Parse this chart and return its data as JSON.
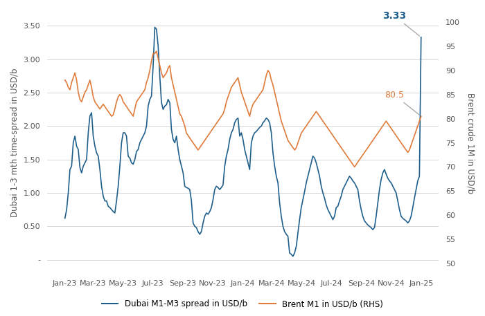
{
  "title": "",
  "ylabel_left": "Dubai 1-3 mth time-spread in USD/b",
  "ylabel_right": "Brent crude 1M in USD/b",
  "ylim_left": [
    -0.2,
    3.7
  ],
  "ylim_right": [
    48,
    102
  ],
  "yticks_left": [
    0.0,
    0.5,
    1.0,
    1.5,
    2.0,
    2.5,
    3.0,
    3.5
  ],
  "yticks_right": [
    50.0,
    55.0,
    60.0,
    65.0,
    70.0,
    75.0,
    80.0,
    85.0,
    90.0,
    95.0,
    100.0
  ],
  "color_dubai": "#1F5F8B",
  "color_brent": "#E07B3A",
  "legend_dubai": "Dubai M1-M3 spread in USD/b",
  "legend_brent": "Brent M1 in USD/b (RHS)",
  "annotation_dubai_val": "3.33",
  "annotation_brent_val": "80.5",
  "background_color": "#ffffff",
  "grid_color": "#d0d0d0",
  "tick_label_color": "#555555",
  "dubai_data": [
    0.62,
    0.75,
    1.0,
    1.35,
    1.4,
    1.75,
    1.85,
    1.7,
    1.65,
    1.38,
    1.3,
    1.4,
    1.45,
    1.5,
    1.9,
    2.15,
    2.2,
    1.85,
    1.7,
    1.6,
    1.55,
    1.35,
    1.1,
    0.95,
    0.88,
    0.88,
    0.8,
    0.78,
    0.75,
    0.72,
    0.7,
    0.88,
    1.1,
    1.4,
    1.75,
    1.9,
    1.9,
    1.85,
    1.55,
    1.52,
    1.45,
    1.43,
    1.5,
    1.62,
    1.65,
    1.75,
    1.8,
    1.85,
    1.9,
    2.0,
    2.3,
    2.4,
    2.45,
    2.9,
    3.48,
    3.45,
    3.2,
    2.75,
    2.35,
    2.25,
    2.3,
    2.32,
    2.4,
    2.35,
    1.95,
    1.8,
    1.75,
    1.85,
    1.65,
    1.5,
    1.4,
    1.3,
    1.1,
    1.08,
    1.07,
    1.05,
    0.88,
    0.55,
    0.5,
    0.48,
    0.42,
    0.38,
    0.42,
    0.55,
    0.65,
    0.7,
    0.68,
    0.72,
    0.78,
    0.9,
    1.05,
    1.1,
    1.08,
    1.05,
    1.08,
    1.12,
    1.4,
    1.55,
    1.65,
    1.8,
    1.9,
    1.95,
    2.05,
    2.1,
    2.12,
    1.85,
    1.9,
    1.8,
    1.65,
    1.55,
    1.45,
    1.35,
    1.75,
    1.85,
    1.9,
    1.92,
    1.95,
    1.98,
    2.0,
    2.05,
    2.08,
    2.12,
    2.1,
    2.05,
    1.9,
    1.6,
    1.4,
    1.25,
    1.15,
    0.85,
    0.65,
    0.5,
    0.42,
    0.38,
    0.35,
    0.1,
    0.08,
    0.05,
    0.1,
    0.2,
    0.4,
    0.6,
    0.78,
    0.9,
    1.02,
    1.15,
    1.25,
    1.35,
    1.45,
    1.55,
    1.52,
    1.45,
    1.35,
    1.25,
    1.1,
    1.0,
    0.92,
    0.82,
    0.75,
    0.7,
    0.65,
    0.6,
    0.65,
    0.78,
    0.8,
    0.88,
    0.95,
    1.05,
    1.1,
    1.15,
    1.2,
    1.25,
    1.22,
    1.18,
    1.15,
    1.1,
    1.05,
    0.88,
    0.75,
    0.65,
    0.58,
    0.55,
    0.52,
    0.5,
    0.48,
    0.45,
    0.48,
    0.65,
    0.85,
    1.05,
    1.2,
    1.3,
    1.35,
    1.28,
    1.22,
    1.18,
    1.15,
    1.1,
    1.05,
    1.0,
    0.88,
    0.75,
    0.65,
    0.62,
    0.6,
    0.58,
    0.55,
    0.58,
    0.65,
    0.78,
    0.92,
    1.05,
    1.18,
    1.25,
    3.33
  ],
  "brent_data": [
    88.0,
    87.5,
    86.5,
    86.0,
    87.5,
    88.5,
    89.5,
    88.0,
    85.5,
    84.0,
    83.5,
    84.5,
    85.5,
    86.0,
    87.0,
    88.0,
    86.5,
    84.5,
    83.5,
    83.0,
    82.5,
    82.0,
    82.5,
    83.0,
    82.5,
    82.0,
    81.5,
    81.0,
    80.5,
    80.8,
    82.0,
    83.5,
    84.5,
    85.0,
    84.5,
    83.5,
    83.0,
    82.5,
    82.0,
    81.5,
    81.0,
    80.5,
    82.0,
    83.5,
    84.0,
    84.5,
    85.0,
    85.5,
    86.0,
    87.5,
    88.5,
    90.0,
    92.0,
    93.5,
    93.5,
    94.0,
    92.5,
    91.0,
    89.5,
    88.5,
    89.0,
    89.5,
    90.5,
    91.0,
    88.5,
    87.0,
    85.5,
    84.0,
    82.5,
    81.0,
    80.5,
    79.5,
    78.5,
    77.0,
    76.5,
    76.0,
    75.5,
    75.0,
    74.5,
    74.0,
    73.5,
    74.0,
    74.5,
    75.0,
    75.5,
    76.0,
    76.5,
    77.0,
    77.5,
    78.0,
    78.5,
    79.0,
    79.5,
    80.0,
    80.5,
    81.0,
    82.0,
    83.5,
    84.5,
    85.5,
    86.5,
    87.0,
    87.5,
    88.0,
    88.5,
    87.0,
    85.5,
    84.5,
    83.5,
    82.5,
    81.5,
    80.5,
    82.0,
    83.0,
    83.5,
    84.0,
    84.5,
    85.0,
    85.5,
    86.0,
    87.5,
    89.0,
    90.0,
    89.5,
    88.0,
    87.0,
    85.5,
    84.0,
    82.5,
    81.0,
    79.5,
    78.5,
    77.5,
    76.5,
    75.5,
    75.0,
    74.5,
    74.0,
    73.5,
    74.0,
    75.0,
    76.0,
    77.0,
    77.5,
    78.0,
    78.5,
    79.0,
    79.5,
    80.0,
    80.5,
    81.0,
    81.5,
    81.0,
    80.5,
    80.0,
    79.5,
    79.0,
    78.5,
    78.0,
    77.5,
    77.0,
    76.5,
    76.0,
    75.5,
    75.0,
    74.5,
    74.0,
    73.5,
    73.0,
    72.5,
    72.0,
    71.5,
    71.0,
    70.5,
    70.0,
    70.5,
    71.0,
    71.5,
    72.0,
    72.5,
    73.0,
    73.5,
    74.0,
    74.5,
    75.0,
    75.5,
    76.0,
    76.5,
    77.0,
    77.5,
    78.0,
    78.5,
    79.0,
    79.5,
    79.0,
    78.5,
    78.0,
    77.5,
    77.0,
    76.5,
    76.0,
    75.5,
    75.0,
    74.5,
    74.0,
    73.5,
    73.0,
    73.5,
    74.5,
    75.5,
    76.5,
    77.5,
    78.5,
    79.5,
    80.5
  ]
}
